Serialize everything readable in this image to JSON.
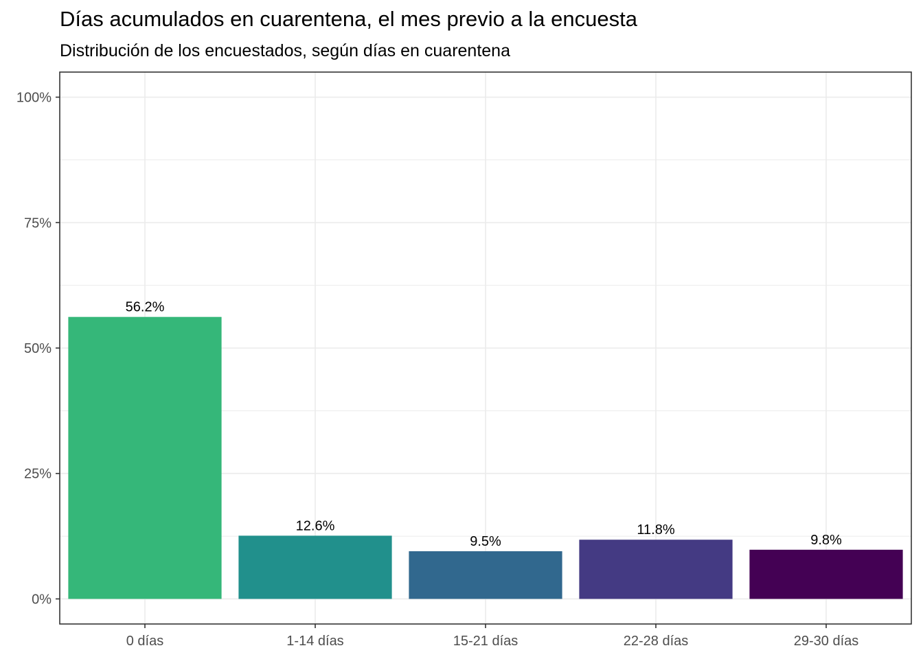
{
  "chart_data": {
    "type": "bar",
    "title": "Días acumulados en cuarentena, el mes previo a la encuesta",
    "subtitle": "Distribución de los encuestados, según días en cuarentena",
    "xlabel": "",
    "ylabel": "",
    "categories": [
      "0 días",
      "1-14 días",
      "15-21 días",
      "22-28 días",
      "29-30 días"
    ],
    "values": [
      56.2,
      12.6,
      9.5,
      11.8,
      9.8
    ],
    "data_labels": [
      "56.2%",
      "12.6%",
      "9.5%",
      "11.8%",
      "9.8%"
    ],
    "colors": [
      "#35b779",
      "#21908c",
      "#31688e",
      "#443a83",
      "#440154"
    ],
    "ylim": [
      -5,
      105
    ],
    "yticks": [
      0,
      25,
      50,
      75,
      100
    ],
    "ytick_labels": [
      "0%",
      "25%",
      "50%",
      "75%",
      "100%"
    ],
    "grid": true,
    "legend": "none"
  }
}
